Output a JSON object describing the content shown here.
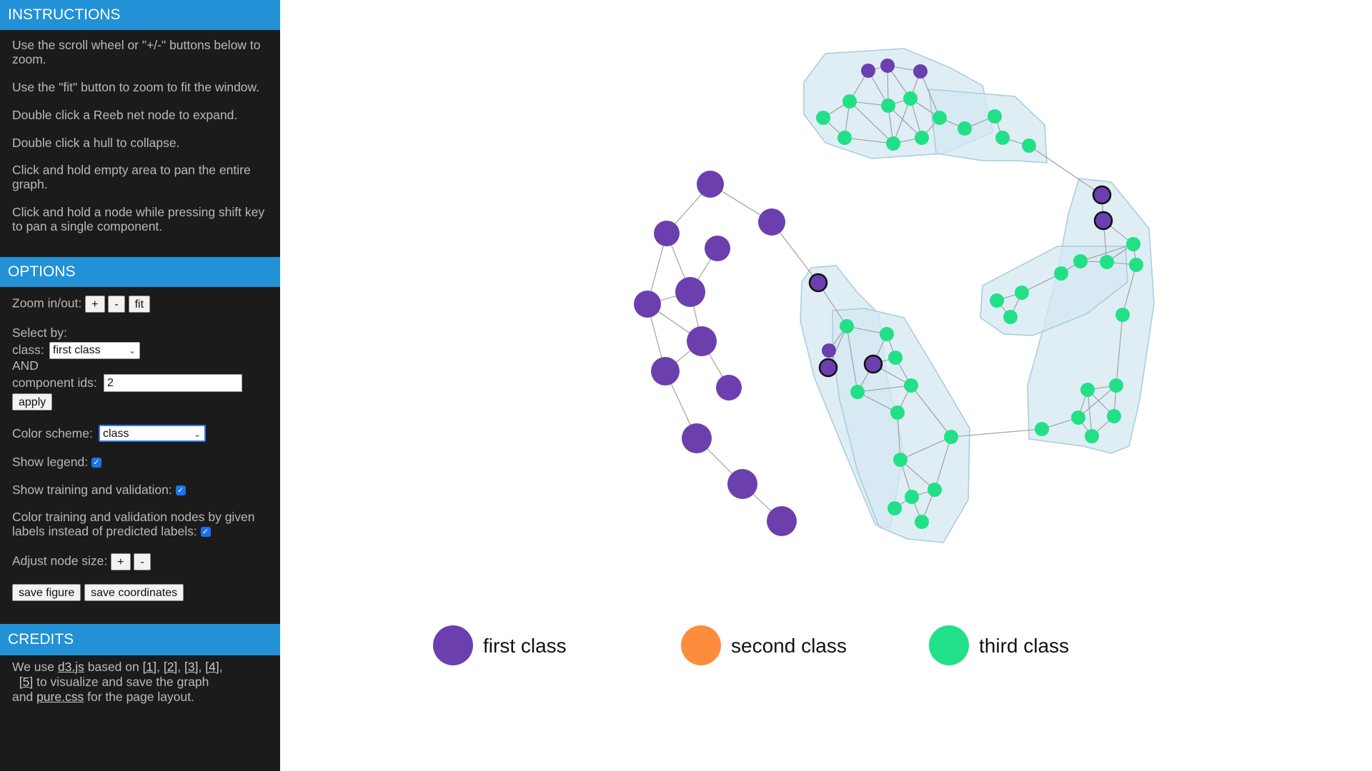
{
  "instructions": {
    "header": "INSTRUCTIONS",
    "lines": [
      "Use the scroll wheel or \"+/-\" buttons below to zoom.",
      "Use the \"fit\" button to zoom to fit the window.",
      "Double click a Reeb net node to expand.",
      "Double click a hull to collapse.",
      "Click and hold empty area to pan the entire graph.",
      "Click and hold a node while pressing shift key to pan a single component."
    ]
  },
  "options": {
    "header": "OPTIONS",
    "zoom_label": "Zoom in/out:",
    "zoom_in": "+",
    "zoom_out": "-",
    "zoom_fit": "fit",
    "select_by": "Select by:",
    "class_label": "class:",
    "class_value": "first class",
    "and_label": "AND",
    "component_ids_label": "component ids:",
    "component_ids_value": "2",
    "apply": "apply",
    "color_scheme_label": "Color scheme:",
    "color_scheme_value": "class",
    "show_legend_label": "Show legend:",
    "show_training_label": "Show training and validation:",
    "color_training_label": "Color training and validation nodes by given labels instead of predicted labels:",
    "node_size_label": "Adjust node size:",
    "node_plus": "+",
    "node_minus": "-",
    "save_figure": "save figure",
    "save_coordinates": "save coordinates"
  },
  "credits": {
    "header": "CREDITS",
    "we_use": "We use",
    "d3": "d3.js",
    "based_on": "based on",
    "ref1": "[1]",
    "ref2": "[2]",
    "ref3": "[3]",
    "ref4": "[4]",
    "ref5": "[5]",
    "to_visualize": "to visualize and save the graph",
    "and": "and",
    "pure": "pure.css",
    "for_layout": "for the page layout."
  },
  "legend": [
    {
      "label": "first class",
      "color": "#6b3fae"
    },
    {
      "label": "second class",
      "color": "#fd8d3c"
    },
    {
      "label": "third class",
      "color": "#22e088"
    }
  ],
  "colors": {
    "header": "#2291d6",
    "sidebar": "#1b1b1b",
    "hull": "#d4e8f2",
    "purple": "#6b3fae",
    "green": "#22e088"
  }
}
